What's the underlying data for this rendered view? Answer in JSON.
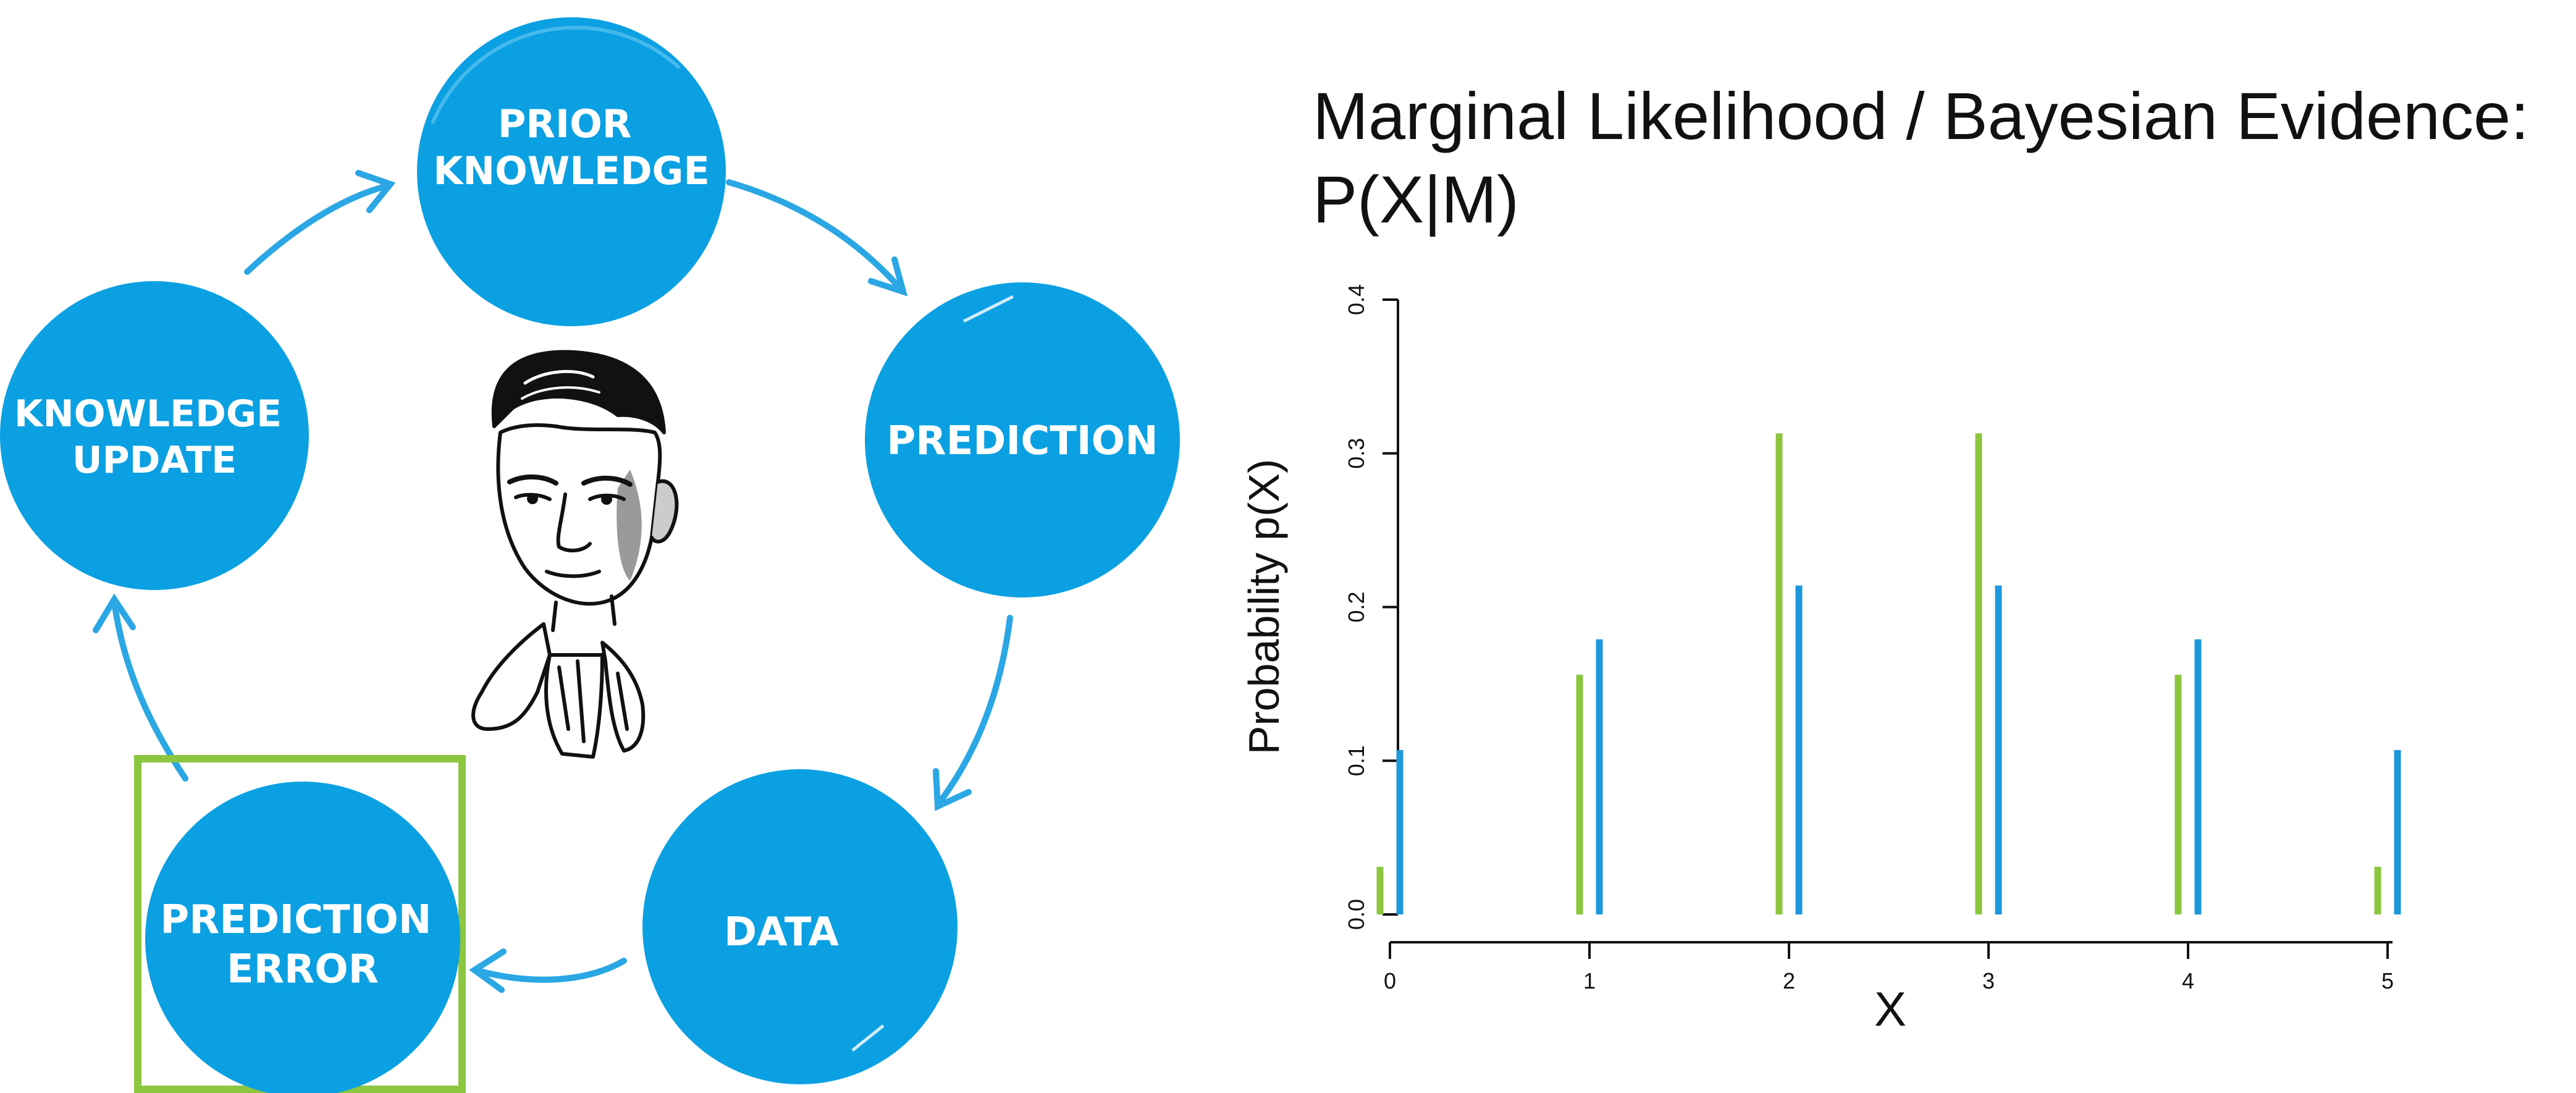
{
  "diagram": {
    "nodes": [
      {
        "id": "prior",
        "lines": [
          "PRIOR",
          "KNOWLEDGE"
        ]
      },
      {
        "id": "prediction",
        "lines": [
          "PREDICTION"
        ]
      },
      {
        "id": "data",
        "lines": [
          "DATA"
        ]
      },
      {
        "id": "error",
        "lines": [
          "PREDICTION",
          "ERROR"
        ]
      },
      {
        "id": "update",
        "lines": [
          "KNOWLEDGE",
          "UPDATE"
        ]
      }
    ],
    "highlighted_node": "error",
    "colors": {
      "node": "#0aa0e2",
      "arrow": "#2aa7e4",
      "highlight": "#8cc63f"
    },
    "icons": [
      "portrait-illustration"
    ]
  },
  "chart_data": {
    "type": "bar",
    "title_lines": [
      "Marginal Likelihood / Bayesian Evidence:",
      "P(X|M)"
    ],
    "xlabel": "X",
    "ylabel": "Probability p(X)",
    "categories": [
      "0",
      "1",
      "2",
      "3",
      "4",
      "5"
    ],
    "x": [
      0,
      1,
      2,
      3,
      4,
      5
    ],
    "ylim": [
      0,
      0.4
    ],
    "yticks": [
      "0.0",
      "0.1",
      "0.2",
      "0.3",
      "0.4"
    ],
    "series": [
      {
        "values": [
          0.031,
          0.156,
          0.313,
          0.313,
          0.156,
          0.031
        ],
        "color": "#8cc63f"
      },
      {
        "values": [
          0.107,
          0.179,
          0.214,
          0.214,
          0.179,
          0.107
        ],
        "color": "#1c98dc"
      }
    ],
    "grid": false,
    "legend": "none"
  }
}
